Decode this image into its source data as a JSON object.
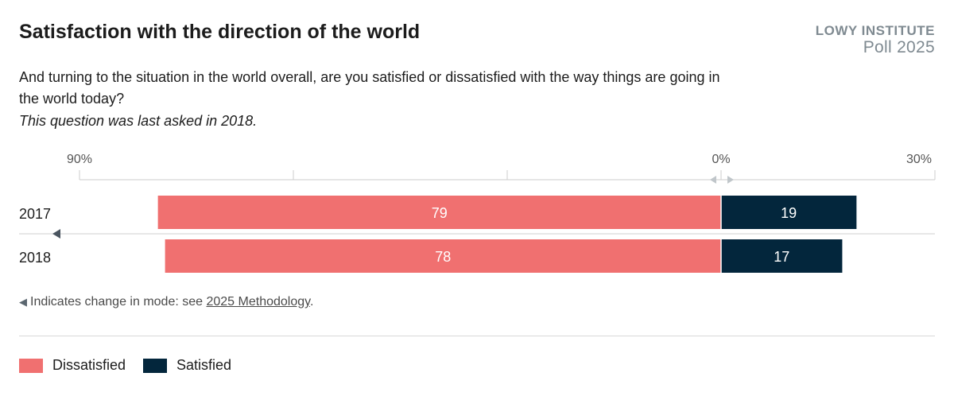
{
  "header": {
    "title": "Satisfaction with the direction of the world",
    "brand_name": "LOWY INSTITUTE",
    "brand_poll": "Poll 2025",
    "question": "And turning to the situation in the world overall, are you satisfied or dissatisfied with the way things are going in the world today?",
    "note": "This question was last asked in 2018."
  },
  "footnote": {
    "symbol": "◀",
    "text": "Indicates change in mode: see ",
    "link": "2025 Methodology",
    "end": "."
  },
  "legend": [
    {
      "label": "Dissatisfied",
      "color": "#f07070"
    },
    {
      "label": "Satisfied",
      "color": "#03263c"
    }
  ],
  "chart_data": {
    "type": "bar",
    "orientation": "horizontal-diverging",
    "categories": [
      "2017",
      "2018"
    ],
    "series": [
      {
        "name": "Dissatisfied",
        "values": [
          79,
          78
        ],
        "color": "#f07070",
        "direction": "left"
      },
      {
        "name": "Satisfied",
        "values": [
          19,
          17
        ],
        "color": "#03263c",
        "direction": "right"
      }
    ],
    "axis": {
      "left_max": 90,
      "right_max": 30,
      "tick_labels": [
        "90%",
        "0%",
        "30%"
      ]
    },
    "mode_change_marker": "between 2017 and 2018",
    "grid": false,
    "legend_position": "bottom-left"
  }
}
